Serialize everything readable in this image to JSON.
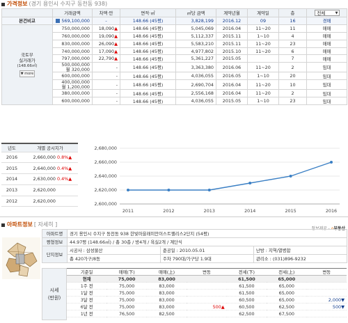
{
  "price_section": {
    "title": "가격정보",
    "subtitle": "(경기 용인시 수지구 동천동 938)"
  },
  "price_headers": [
    "거래금액",
    "차액·만",
    "면적·㎡",
    "㎡당 금액",
    "계약년월",
    "계약일",
    "층"
  ],
  "filter": {
    "value": "전체"
  },
  "compare_label": "본건비교",
  "compare_row": {
    "price": "569,100,000",
    "diff": "-",
    "area": "148.66 (45평)",
    "unit": "3,828,199",
    "ym": "2016.12",
    "day": "09",
    "floor": "16",
    "type": "경매"
  },
  "group_label": [
    "국토부",
    "실거래가"
  ],
  "group_unit": "(148.66㎡)",
  "more_btn": "▼ more",
  "price_rows": [
    {
      "price": "750,000,000",
      "diff": "18,090",
      "arrow": "▲",
      "area": "148.66 (45평)",
      "unit": "5,045,069",
      "ym": "2016.04",
      "day": "11~20",
      "floor": "11",
      "type": "매매"
    },
    {
      "price": "760,000,000",
      "diff": "19,090",
      "arrow": "▲",
      "area": "148.66 (45평)",
      "unit": "5,112,337",
      "ym": "2015.11",
      "day": "1~10",
      "floor": "4",
      "type": "매매"
    },
    {
      "price": "830,000,000",
      "diff": "26,090",
      "arrow": "▲",
      "area": "148.66 (45평)",
      "unit": "5,583,210",
      "ym": "2015.11",
      "day": "11~20",
      "floor": "23",
      "type": "매매"
    },
    {
      "price": "740,000,000",
      "diff": "17,090",
      "arrow": "▲",
      "area": "148.66 (45평)",
      "unit": "4,977,802",
      "ym": "2015.10",
      "day": "11~20",
      "floor": "6",
      "type": "매매"
    },
    {
      "price": "797,000,000",
      "diff": "22,790",
      "arrow": "▲",
      "area": "148.66 (45평)",
      "unit": "5,361,227",
      "ym": "2015.05",
      "day": "",
      "floor": "7",
      "type": "매매"
    },
    {
      "price": "500,000,000",
      "price2": "월 320,000",
      "diff": "-",
      "arrow": "",
      "area": "148.66 (45평)",
      "unit": "3,363,380",
      "ym": "2016.06",
      "day": "11~20",
      "floor": "2",
      "type": "임대"
    },
    {
      "price": "600,000,000",
      "diff": "-",
      "arrow": "",
      "area": "148.66 (45평)",
      "unit": "4,036,055",
      "ym": "2016.05",
      "day": "1~10",
      "floor": "20",
      "type": "임대"
    },
    {
      "price": "400,000,000",
      "price2": "월 1,200,000",
      "diff": "-",
      "arrow": "",
      "area": "148.66 (45평)",
      "unit": "2,690,704",
      "ym": "2016.04",
      "day": "11~20",
      "floor": "10",
      "type": "임대"
    },
    {
      "price": "380,000,000",
      "diff": "-",
      "arrow": "",
      "area": "148.66 (45평)",
      "unit": "2,556,168",
      "ym": "2016.04",
      "day": "11~20",
      "floor": "2",
      "type": "임대"
    },
    {
      "price": "600,000,000",
      "diff": "-",
      "arrow": "",
      "area": "148.66 (45평)",
      "unit": "4,036,055",
      "ym": "2015.05",
      "day": "1~10",
      "floor": "23",
      "type": "임대"
    }
  ],
  "pub_headers": [
    "년도",
    "개별 공시지가"
  ],
  "pub_rows": [
    {
      "year": "2016",
      "price": "2,660,000",
      "chg": "0.8%",
      "arrow": "▲"
    },
    {
      "year": "2015",
      "price": "2,640,000",
      "chg": "0.4%",
      "arrow": "▲"
    },
    {
      "year": "2014",
      "price": "2,630,000",
      "chg": "0.4%",
      "arrow": "▲"
    },
    {
      "year": "2013",
      "price": "2,620,000",
      "chg": "",
      "arrow": ""
    },
    {
      "year": "2012",
      "price": "2,620,000",
      "chg": "",
      "arrow": ""
    }
  ],
  "chart_data": {
    "type": "line",
    "x": [
      "2011",
      "2012",
      "2013",
      "2014",
      "2015",
      "2016"
    ],
    "values": [
      2620000,
      2620000,
      2620000,
      2630000,
      2640000,
      2660000
    ],
    "ylim": [
      2600000,
      2680000
    ],
    "yticks": [
      "2,680,000",
      "2,660,000",
      "2,640,000",
      "2,620,000",
      "2,600,000"
    ],
    "color": "#3a7fc4",
    "grid": true
  },
  "apt_section": {
    "title": "아파트정보",
    "subtitle": "[ 자세히 ]"
  },
  "info_link": {
    "label": "정보제공 -",
    "brand": "부동산"
  },
  "apt_rows": [
    [
      "아파트명",
      "경기 용인시 수지구 동천동 938 한빛마을래미안이스트팰리스2단지 (54평)"
    ],
    [
      "평형정보",
      "44.97평 (148.66㎡) / 총 30층 / 방4개 / 욕실2개 / 계단식"
    ],
    [
      "단지정보",
      "시공사 : 삼성물산",
      "준공일 : 2010.05.01",
      "난방 : 지역/열병합"
    ],
    [
      "",
      "총 420가구/8동",
      "주차 790대/가구당 1.9대",
      "관리소 : (031)896-9232"
    ]
  ],
  "history_label": [
    "시세",
    "(만원)"
  ],
  "history_headers": [
    "기준일",
    "매매(下)",
    "매매(上)",
    "변동",
    "전세(下)",
    "전세(上)",
    "변동"
  ],
  "history_rows": [
    {
      "d": "현재",
      "a": "75,000",
      "b": "83,000",
      "c": "",
      "e": "61,500",
      "f": "65,000",
      "g": ""
    },
    {
      "d": "1주 전",
      "a": "75,000",
      "b": "83,000",
      "c": "",
      "e": "61,500",
      "f": "65,000",
      "g": ""
    },
    {
      "d": "1달 전",
      "a": "75,000",
      "b": "83,000",
      "c": "",
      "e": "61,500",
      "f": "65,000",
      "g": ""
    },
    {
      "d": "3달 전",
      "a": "75,000",
      "b": "83,000",
      "c": "",
      "e": "60,500",
      "f": "65,000",
      "g": "2,000"
    },
    {
      "d": "6달 전",
      "a": "75,000",
      "b": "83,000",
      "c": "500",
      "e": "60,500",
      "f": "62,500",
      "g": "500"
    },
    {
      "d": "1년 전",
      "a": "76,500",
      "b": "82,500",
      "c": "",
      "e": "62,500",
      "f": "67,500",
      "g": ""
    }
  ]
}
